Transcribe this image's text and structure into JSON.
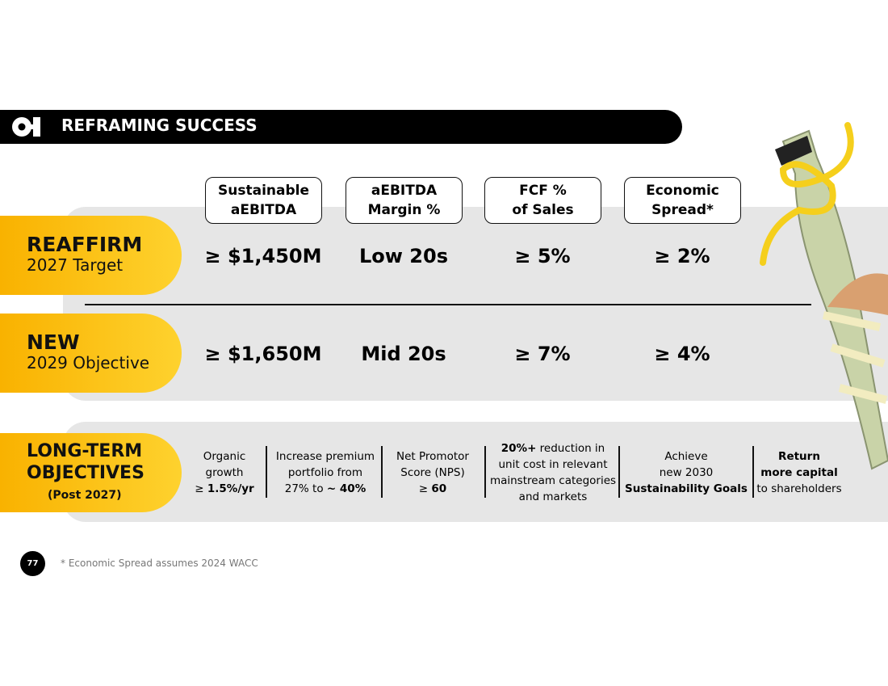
{
  "header": {
    "title": "REFRAMING SUCCESS"
  },
  "columns": [
    "Sustainable\naEBITDA",
    "aEBITDA\nMargin %",
    "FCF %\nof Sales",
    "Economic\nSpread*"
  ],
  "rows": [
    {
      "label": "REAFFIRM",
      "sublabel": "2027 Target",
      "values": [
        "≥ $1,450M",
        "Low 20s",
        "≥ 5%",
        "≥ 2%"
      ]
    },
    {
      "label": "NEW",
      "sublabel": "2029 Objective",
      "values": [
        "≥ $1,650M",
        "Mid 20s",
        "≥ 7%",
        "≥ 4%"
      ]
    }
  ],
  "long_term": {
    "label": "LONG-TERM\nOBJECTIVES",
    "sublabel": "(Post 2027)",
    "items": [
      [
        {
          "text": "Organic\ngrowth\n≥ ",
          "bold": false
        },
        {
          "text": "1.5%/yr",
          "bold": true
        }
      ],
      [
        {
          "text": "Increase premium\nportfolio from\n27% to ",
          "bold": false
        },
        {
          "text": "~ 40%",
          "bold": true
        }
      ],
      [
        {
          "text": "Net Promotor\nScore (NPS)\n≥ ",
          "bold": false
        },
        {
          "text": "60",
          "bold": true
        }
      ],
      [
        {
          "text": "20%+",
          "bold": true
        },
        {
          "text": " reduction in\nunit cost in relevant\nmainstream categories\nand markets",
          "bold": false
        }
      ],
      [
        {
          "text": "Achieve\nnew 2030\n",
          "bold": false
        },
        {
          "text": "Sustainability Goals",
          "bold": true
        }
      ],
      [
        {
          "text": "Return\nmore capital",
          "bold": true
        },
        {
          "text": "\nto shareholders",
          "bold": false
        }
      ]
    ]
  },
  "footer": {
    "page": "77",
    "note": "* Economic Spread assumes 2024 WACC"
  }
}
